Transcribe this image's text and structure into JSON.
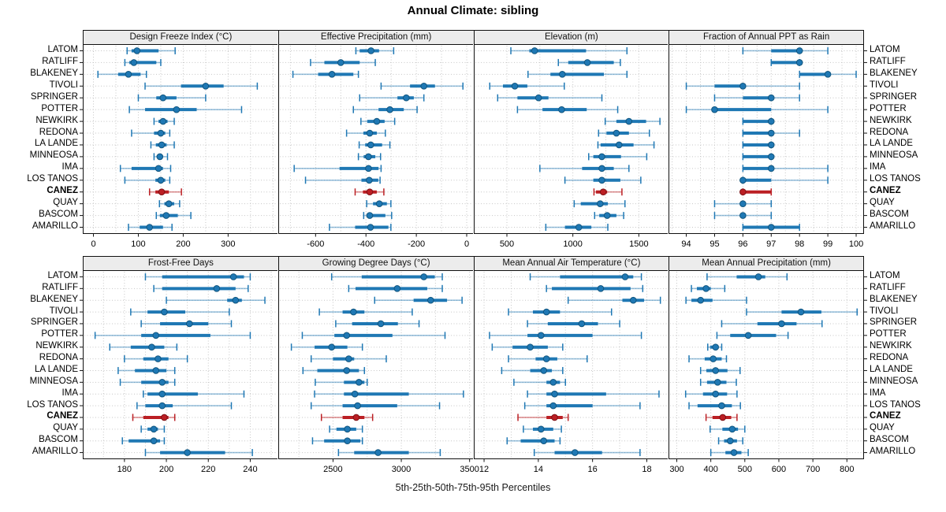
{
  "title": "Annual Climate: sibling",
  "footer": "5th-25th-50th-75th-95th Percentiles",
  "percentile_labels": [
    "5th",
    "25th",
    "50th",
    "75th",
    "95th"
  ],
  "stations": [
    "LATOM",
    "RATLIFF",
    "BLAKENEY",
    "TIVOLI",
    "SPRINGER",
    "POTTER",
    "NEWKIRK",
    "REDONA",
    "LA LANDE",
    "MINNEOSA",
    "IMA",
    "LOS TANOS",
    "CANEZ",
    "QUAY",
    "BASCOM",
    "AMARILLO"
  ],
  "highlight_station": "CANEZ",
  "colors": {
    "normal": "#1f78b4",
    "normal_light": "rgba(31,120,180,0.45)",
    "normal_dark": "#11557e",
    "highlight": "#bb1f24",
    "highlight_light": "rgba(187,31,36,0.5)",
    "highlight_dark": "#7e1014",
    "panel_header_bg": "#ececec",
    "grid": "#c6c6c6",
    "border": "#111111"
  },
  "chart_data": [
    {
      "type": "dotplot-interval",
      "title": "Design Freeze Index (°C)",
      "xlim": [
        -22,
        410
      ],
      "ticks": [
        0,
        100,
        200,
        300
      ],
      "grid_step": 50,
      "values": [
        [
          75,
          85,
          97,
          145,
          182
        ],
        [
          70,
          80,
          90,
          140,
          150
        ],
        [
          10,
          55,
          78,
          105,
          118
        ],
        [
          115,
          195,
          250,
          290,
          365
        ],
        [
          100,
          140,
          155,
          185,
          250
        ],
        [
          80,
          115,
          185,
          230,
          330
        ],
        [
          135,
          145,
          155,
          165,
          180
        ],
        [
          85,
          135,
          150,
          160,
          170
        ],
        [
          128,
          139,
          152,
          163,
          180
        ],
        [
          135,
          142,
          148,
          154,
          165
        ],
        [
          60,
          85,
          145,
          155,
          172
        ],
        [
          70,
          138,
          150,
          160,
          170
        ],
        [
          125,
          138,
          152,
          168,
          196
        ],
        [
          147,
          158,
          168,
          180,
          192
        ],
        [
          140,
          148,
          162,
          188,
          217
        ],
        [
          78,
          103,
          125,
          155,
          175
        ]
      ]
    },
    {
      "type": "dotplot-interval",
      "title": "Effective Precipitation (mm)",
      "xlim": [
        -745,
        25
      ],
      "ticks": [
        -600,
        -400,
        -200,
        0
      ],
      "grid_step": 100,
      "values": [
        [
          -440,
          -425,
          -380,
          -348,
          -290
        ],
        [
          -620,
          -565,
          -500,
          -425,
          -363
        ],
        [
          -690,
          -590,
          -535,
          -450,
          -430
        ],
        [
          -340,
          -225,
          -170,
          -126,
          -15
        ],
        [
          -425,
          -275,
          -240,
          -210,
          -170
        ],
        [
          -450,
          -350,
          -305,
          -250,
          -197
        ],
        [
          -420,
          -395,
          -357,
          -326,
          -286
        ],
        [
          -477,
          -410,
          -385,
          -357,
          -323
        ],
        [
          -427,
          -403,
          -381,
          -336,
          -305
        ],
        [
          -430,
          -409,
          -390,
          -363,
          -342
        ],
        [
          -685,
          -505,
          -390,
          -350,
          -340
        ],
        [
          -640,
          -418,
          -387,
          -351,
          -344
        ],
        [
          -443,
          -412,
          -385,
          -357,
          -329
        ],
        [
          -397,
          -372,
          -347,
          -317,
          -301
        ],
        [
          -409,
          -397,
          -385,
          -323,
          -298
        ],
        [
          -545,
          -443,
          -382,
          -311,
          -301
        ]
      ]
    },
    {
      "type": "dotplot-interval",
      "title": "Elevation (m)",
      "xlim": [
        255,
        1725
      ],
      "ticks": [
        500,
        1000,
        1500
      ],
      "grid_step": 250,
      "values": [
        [
          530,
          670,
          710,
          1100,
          1410
        ],
        [
          890,
          965,
          1110,
          1310,
          1360
        ],
        [
          660,
          830,
          920,
          1235,
          1410
        ],
        [
          370,
          470,
          560,
          655,
          935
        ],
        [
          430,
          580,
          740,
          815,
          1220
        ],
        [
          580,
          770,
          915,
          1105,
          1340
        ],
        [
          1245,
          1330,
          1425,
          1555,
          1660
        ],
        [
          1195,
          1255,
          1330,
          1425,
          1580
        ],
        [
          1190,
          1210,
          1350,
          1460,
          1615
        ],
        [
          1120,
          1155,
          1220,
          1365,
          1560
        ],
        [
          750,
          1070,
          1220,
          1310,
          1425
        ],
        [
          940,
          1155,
          1220,
          1360,
          1515
        ],
        [
          1160,
          1175,
          1230,
          1260,
          1372
        ],
        [
          1010,
          1060,
          1207,
          1265,
          1395
        ],
        [
          1165,
          1200,
          1260,
          1330,
          1385
        ],
        [
          795,
          940,
          1045,
          1140,
          1265
        ]
      ]
    },
    {
      "type": "dotplot-interval",
      "title": "Fraction of Annual PPT as Rain",
      "xlim": [
        93.4,
        100.25
      ],
      "ticks": [
        94,
        95,
        96,
        97,
        98,
        99,
        100
      ],
      "grid_step": 0.5,
      "values": [
        [
          96,
          97,
          98,
          98,
          99
        ],
        [
          97,
          97,
          98,
          98,
          98
        ],
        [
          98,
          98,
          99,
          99,
          100
        ],
        [
          94,
          95,
          96,
          96,
          98
        ],
        [
          95,
          96,
          97,
          97,
          98
        ],
        [
          94,
          95,
          95,
          97,
          99
        ],
        [
          96,
          96,
          97,
          97,
          97
        ],
        [
          96,
          96,
          97,
          97,
          98
        ],
        [
          96,
          96,
          97,
          97,
          97
        ],
        [
          96,
          96,
          97,
          97,
          97
        ],
        [
          96,
          96,
          97,
          97,
          99
        ],
        [
          96,
          96,
          96,
          97,
          99
        ],
        [
          96,
          96,
          96,
          97,
          97
        ],
        [
          95,
          96,
          96,
          96,
          97
        ],
        [
          95,
          96,
          96,
          96,
          97
        ],
        [
          96,
          96,
          97,
          98,
          98
        ]
      ]
    },
    {
      "type": "dotplot-interval",
      "title": "Frost-Free Days",
      "xlim": [
        160.5,
        253
      ],
      "ticks": [
        180,
        200,
        220,
        240
      ],
      "grid_step": 10,
      "values": [
        [
          190,
          198,
          232,
          237,
          240
        ],
        [
          194,
          198,
          224,
          233,
          239
        ],
        [
          200,
          229,
          233,
          236,
          247
        ],
        [
          183,
          191,
          199,
          209,
          230
        ],
        [
          188,
          197,
          211,
          220,
          231
        ],
        [
          166,
          188,
          195,
          221,
          240
        ],
        [
          173,
          183,
          193,
          199,
          205
        ],
        [
          180,
          189,
          196,
          201,
          210
        ],
        [
          177,
          185,
          195,
          200,
          204
        ],
        [
          178,
          188,
          198,
          201,
          204
        ],
        [
          189,
          191,
          198,
          215,
          237
        ],
        [
          186,
          190,
          198,
          203,
          231
        ],
        [
          184,
          189,
          199,
          201,
          204
        ],
        [
          188,
          191,
          194,
          196,
          199
        ],
        [
          179,
          182,
          194,
          197,
          199
        ],
        [
          190,
          197,
          210,
          228,
          241
        ]
      ]
    },
    {
      "type": "dotplot-interval",
      "title": "Growing Degree Days (°C)",
      "xlim": [
        2105,
        3525
      ],
      "ticks": [
        2500,
        3000,
        3500
      ],
      "grid_step": 250,
      "values": [
        [
          2490,
          2710,
          3165,
          3245,
          3300
        ],
        [
          2615,
          2665,
          2970,
          3190,
          3300
        ],
        [
          2805,
          3090,
          3215,
          3335,
          3445
        ],
        [
          2400,
          2570,
          2650,
          2730,
          3080
        ],
        [
          2520,
          2640,
          2850,
          2975,
          3130
        ],
        [
          2275,
          2510,
          2600,
          2935,
          3320
        ],
        [
          2195,
          2365,
          2490,
          2605,
          2715
        ],
        [
          2340,
          2500,
          2615,
          2655,
          2890
        ],
        [
          2280,
          2385,
          2600,
          2690,
          2730
        ],
        [
          2370,
          2580,
          2690,
          2730,
          2750
        ],
        [
          2365,
          2580,
          2660,
          3055,
          3455
        ],
        [
          2340,
          2570,
          2680,
          2970,
          3280
        ],
        [
          2415,
          2570,
          2670,
          2730,
          2790
        ],
        [
          2475,
          2525,
          2605,
          2670,
          2715
        ],
        [
          2350,
          2435,
          2605,
          2700,
          2715
        ],
        [
          2540,
          2655,
          2830,
          3055,
          3285
        ]
      ]
    },
    {
      "type": "dotplot-interval",
      "title": "Mean Annual Air Temperature (°C)",
      "xlim": [
        11.65,
        18.8
      ],
      "ticks": [
        12,
        14,
        16,
        18
      ],
      "grid_step": 1,
      "values": [
        [
          13.7,
          14.8,
          17.2,
          17.5,
          17.8
        ],
        [
          14.3,
          14.5,
          16.3,
          17.4,
          17.85
        ],
        [
          15.1,
          17.1,
          17.5,
          17.9,
          18.5
        ],
        [
          12.9,
          13.8,
          14.3,
          14.8,
          16.7
        ],
        [
          13.6,
          14.35,
          15.6,
          16.2,
          17.0
        ],
        [
          12.2,
          13.6,
          14.1,
          16.0,
          17.8
        ],
        [
          12.3,
          13.05,
          13.7,
          14.35,
          14.9
        ],
        [
          12.9,
          13.9,
          14.3,
          14.7,
          15.8
        ],
        [
          12.65,
          13.7,
          14.2,
          14.5,
          14.9
        ],
        [
          13.1,
          14.3,
          14.55,
          14.8,
          15.0
        ],
        [
          13.6,
          14.3,
          14.6,
          16.5,
          18.45
        ],
        [
          13.5,
          14.3,
          14.55,
          16.0,
          17.75
        ],
        [
          13.25,
          14.3,
          14.6,
          14.9,
          15.1
        ],
        [
          13.45,
          13.8,
          14.1,
          14.55,
          14.85
        ],
        [
          12.85,
          13.35,
          14.2,
          14.6,
          14.8
        ],
        [
          13.85,
          14.6,
          15.35,
          16.35,
          17.75
        ]
      ]
    },
    {
      "type": "dotplot-interval",
      "title": "Mean Annual Precipitation (mm)",
      "xlim": [
        278,
        848
      ],
      "ticks": [
        300,
        400,
        500,
        600,
        700,
        800
      ],
      "grid_step": 100,
      "values": [
        [
          389,
          476,
          540,
          560,
          624
        ],
        [
          343,
          359,
          386,
          400,
          441
        ],
        [
          327,
          343,
          370,
          405,
          505
        ],
        [
          505,
          608,
          665,
          725,
          830
        ],
        [
          432,
          537,
          608,
          652,
          727
        ],
        [
          418,
          457,
          510,
          592,
          627
        ],
        [
          391,
          398,
          414,
          423,
          432
        ],
        [
          336,
          382,
          407,
          432,
          446
        ],
        [
          370,
          387,
          414,
          449,
          486
        ],
        [
          370,
          389,
          420,
          446,
          475
        ],
        [
          326,
          377,
          414,
          448,
          477
        ],
        [
          336,
          361,
          432,
          462,
          487
        ],
        [
          386,
          405,
          435,
          460,
          477
        ],
        [
          398,
          434,
          463,
          480,
          500
        ],
        [
          423,
          439,
          457,
          477,
          494
        ],
        [
          400,
          443,
          468,
          490,
          510
        ]
      ]
    }
  ]
}
